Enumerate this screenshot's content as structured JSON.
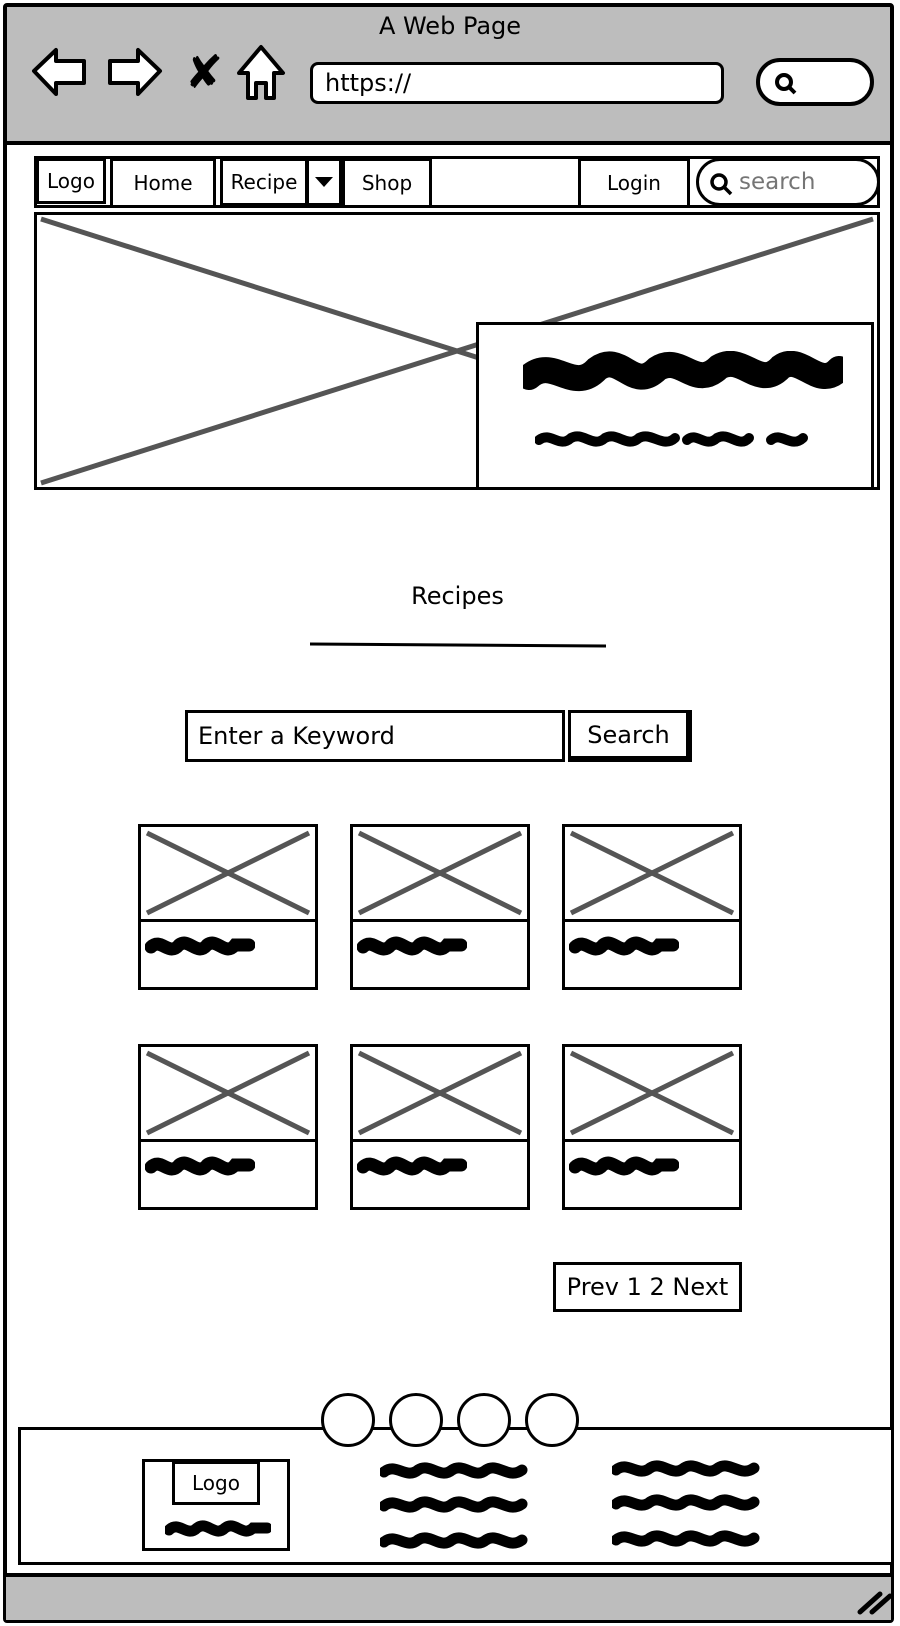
{
  "window": {
    "title": "A Web Page",
    "url": "https://"
  },
  "navbar": {
    "logo": "Logo",
    "home": "Home",
    "recipe": "Recipe",
    "shop": "Shop",
    "login": "Login",
    "search_placeholder": "search"
  },
  "recipes": {
    "title": "Recipes",
    "keyword_placeholder": "Enter a Keyword",
    "search_button": "Search",
    "cards": [
      {},
      {},
      {},
      {},
      {},
      {}
    ],
    "pagination": "Prev 1 2 Next"
  },
  "footer": {
    "logo": "Logo",
    "carousel_dots": 4
  },
  "icons": [
    "back-arrow-icon",
    "forward-arrow-icon",
    "close-icon",
    "home-icon",
    "search-icon",
    "caret-down-icon",
    "resize-grip-icon"
  ],
  "colors": {
    "chrome": "#bdbdbd",
    "stroke": "#000000",
    "placeholder_x": "#555555"
  }
}
